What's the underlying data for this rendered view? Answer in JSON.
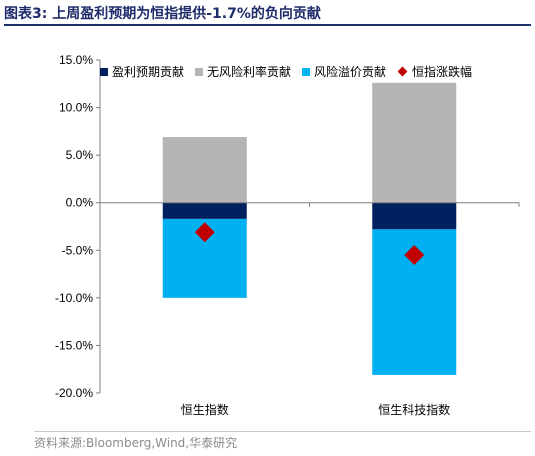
{
  "figure_title": "图表3:  上周盈利预期为恒指提供-1.7%的负向贡献",
  "source": "资料来源:Bloomberg,Wind,华泰研究",
  "chart_data": {
    "type": "bar",
    "stacked": true,
    "categories": [
      "恒生指数",
      "恒生科技指数"
    ],
    "series": [
      {
        "name": "盈利预期贡献",
        "kind": "bar",
        "color": "#002060",
        "values": [
          -1.7,
          -2.8
        ]
      },
      {
        "name": "无风险利率贡献",
        "kind": "bar",
        "color": "#b4b4b4",
        "values": [
          6.9,
          12.6
        ]
      },
      {
        "name": "风险溢价贡献",
        "kind": "bar",
        "color": "#00b0f0",
        "values": [
          -8.3,
          -15.3
        ]
      },
      {
        "name": "恒指涨跌幅",
        "kind": "marker",
        "color": "#c00000",
        "values": [
          -3.1,
          -5.5
        ]
      }
    ],
    "ylim": [
      -20,
      15
    ],
    "yticks": [
      "15.0%",
      "10.0%",
      "5.0%",
      "0.0%",
      "-5.0%",
      "-10.0%",
      "-15.0%",
      "-20.0%"
    ],
    "ytick_values": [
      15,
      10,
      5,
      0,
      -5,
      -10,
      -15,
      -20
    ],
    "legend_position": "top",
    "grid": false
  }
}
